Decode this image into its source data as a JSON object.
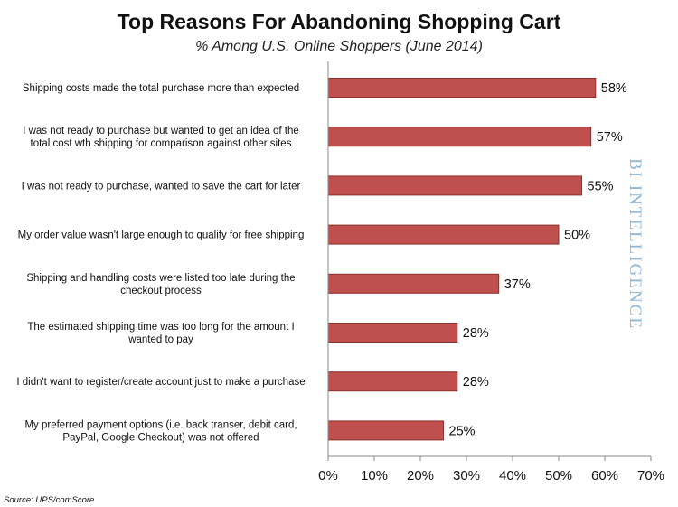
{
  "chart_data": {
    "type": "bar",
    "orientation": "horizontal",
    "title": "Top Reasons For Abandoning Shopping Cart",
    "subtitle": "% Among U.S. Online Shoppers (June 2014)",
    "categories": [
      [
        "Shipping costs made the total purchase more than expected"
      ],
      [
        "I was not ready to purchase but wanted to get an idea of the",
        "total cost wth shipping for comparison against other sites"
      ],
      [
        "I was not ready to purchase, wanted to save the cart for later"
      ],
      [
        "My order value wasn't large enough to qualify for free shipping"
      ],
      [
        "Shipping and handling costs were listed too late during the",
        "checkout process"
      ],
      [
        "The estimated shipping time was too long for the amount I",
        "wanted to pay"
      ],
      [
        "I didn't want to register/create account just to make a purchase"
      ],
      [
        "My preferred payment options (i.e. back transer, debit card,",
        "PayPal, Google Checkout) was not offered"
      ]
    ],
    "values": [
      58,
      57,
      55,
      50,
      37,
      28,
      28,
      25
    ],
    "value_labels": [
      "58%",
      "57%",
      "55%",
      "50%",
      "37%",
      "28%",
      "28%",
      "25%"
    ],
    "x_ticks": [
      "0%",
      "10%",
      "20%",
      "30%",
      "40%",
      "50%",
      "60%",
      "70%"
    ],
    "xlim": [
      0,
      70
    ],
    "grid": false,
    "bar_color": "#c0504d",
    "bar_stroke": "#8c2f2d"
  },
  "source": "Source: UPS/comScore",
  "watermark": "BI INTELLIGENCE",
  "watermark_color": "#8fb8d8"
}
